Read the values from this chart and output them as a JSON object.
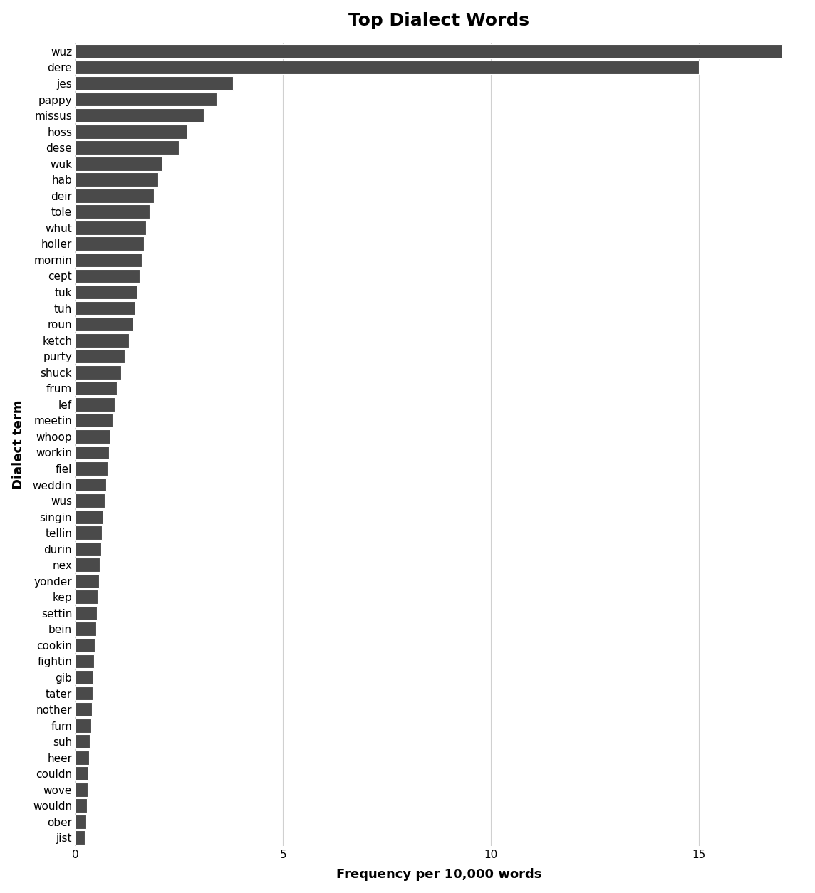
{
  "title": "Top Dialect Words",
  "xlabel": "Frequency per 10,000 words",
  "ylabel": "Dialect term",
  "bar_color": "#4a4a4a",
  "background_color": "#ffffff",
  "grid_color": "#d0d0d0",
  "words": [
    "wuz",
    "dere",
    "jes",
    "pappy",
    "missus",
    "hoss",
    "dese",
    "wuk",
    "hab",
    "deir",
    "tole",
    "whut",
    "holler",
    "mornin",
    "cept",
    "tuk",
    "tuh",
    "roun",
    "ketch",
    "purty",
    "shuck",
    "frum",
    "lef",
    "meetin",
    "whoop",
    "workin",
    "fiel",
    "weddin",
    "wus",
    "singin",
    "tellin",
    "durin",
    "nex",
    "yonder",
    "kep",
    "settin",
    "bein",
    "cookin",
    "fightin",
    "gib",
    "tater",
    "nother",
    "fum",
    "suh",
    "heer",
    "couldn",
    "wove",
    "wouldn",
    "ober",
    "jist"
  ],
  "values": [
    17.0,
    15.0,
    3.8,
    3.4,
    3.1,
    2.7,
    2.5,
    2.1,
    2.0,
    1.9,
    1.8,
    1.7,
    1.65,
    1.6,
    1.55,
    1.5,
    1.45,
    1.4,
    1.3,
    1.2,
    1.1,
    1.0,
    0.95,
    0.9,
    0.85,
    0.82,
    0.78,
    0.75,
    0.72,
    0.68,
    0.65,
    0.62,
    0.6,
    0.57,
    0.55,
    0.53,
    0.5,
    0.48,
    0.46,
    0.44,
    0.42,
    0.4,
    0.38,
    0.36,
    0.34,
    0.32,
    0.3,
    0.28,
    0.26,
    0.24
  ],
  "xlim": [
    0,
    17.5
  ],
  "xticks": [
    0,
    5,
    10,
    15
  ],
  "title_fontsize": 18,
  "label_fontsize": 13,
  "tick_fontsize": 11,
  "bar_height": 0.88
}
